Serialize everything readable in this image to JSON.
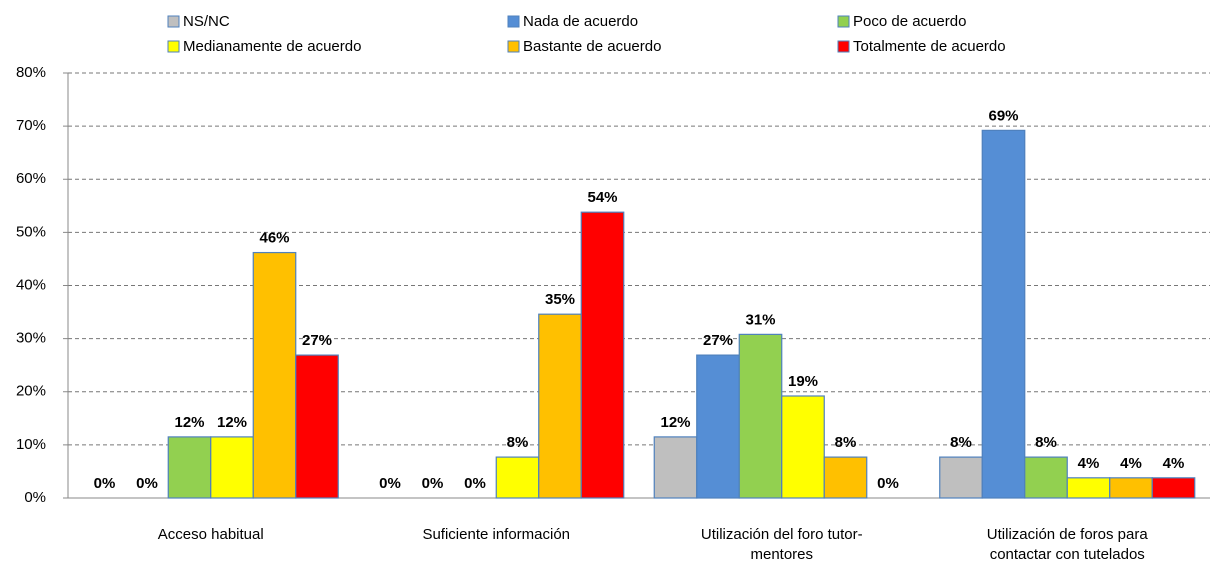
{
  "chart_data": {
    "type": "bar",
    "categories": [
      "Acceso habitual",
      "Suficiente información",
      "Utilización del foro tutor-\nmentores",
      "Utilización de foros para\ncontactar con tutelados"
    ],
    "series": [
      {
        "name": "NS/NC",
        "color": "#bfbfbf",
        "values": [
          0,
          0,
          11.5,
          7.7
        ],
        "value_labels": [
          "0%",
          "0%",
          "12%",
          "8%"
        ]
      },
      {
        "name": "Nada de acuerdo",
        "color": "#558ed5",
        "values": [
          0,
          0,
          26.9,
          69.2
        ],
        "value_labels": [
          "0%",
          "0%",
          "27%",
          "69%"
        ]
      },
      {
        "name": "Poco de acuerdo",
        "color": "#92d050",
        "values": [
          11.5,
          0,
          30.8,
          7.7
        ],
        "value_labels": [
          "12%",
          "0%",
          "31%",
          "8%"
        ]
      },
      {
        "name": "Medianamente de acuerdo",
        "color": "#ffff00",
        "values": [
          11.5,
          7.7,
          19.2,
          3.8
        ],
        "value_labels": [
          "12%",
          "8%",
          "19%",
          "4%"
        ]
      },
      {
        "name": "Bastante de acuerdo",
        "color": "#ffc000",
        "values": [
          46.2,
          34.6,
          7.7,
          3.8
        ],
        "value_labels": [
          "46%",
          "35%",
          "8%",
          "4%"
        ]
      },
      {
        "name": "Totalmente de acuerdo",
        "color": "#ff0000",
        "values": [
          26.9,
          53.8,
          0,
          3.8
        ],
        "value_labels": [
          "27%",
          "54%",
          "0%",
          "4%"
        ]
      }
    ],
    "ylim": [
      0,
      80
    ],
    "yticks": [
      {
        "value": 0,
        "label": "0%"
      },
      {
        "value": 10,
        "label": "10%"
      },
      {
        "value": 20,
        "label": "20%"
      },
      {
        "value": 30,
        "label": "30%"
      },
      {
        "value": 40,
        "label": "40%"
      },
      {
        "value": 50,
        "label": "50%"
      },
      {
        "value": 60,
        "label": "60%"
      },
      {
        "value": 70,
        "label": "70%"
      },
      {
        "value": 80,
        "label": "80%"
      }
    ],
    "grid": true,
    "legend": "top"
  }
}
